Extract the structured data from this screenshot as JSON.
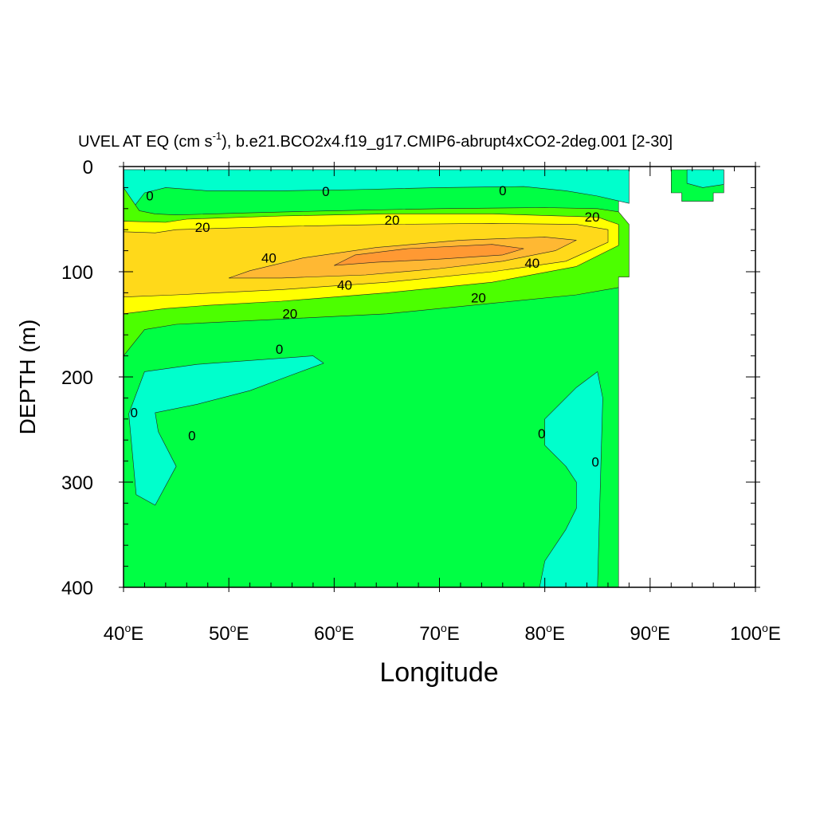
{
  "chart_data": {
    "type": "contour",
    "title": "UVEL AT EQ (cm s",
    "title_sup": "-1",
    "title_rest": "), b.e21.BCO2x4.f19_g17.CMIP6-abrupt4xCO2-2deg.001 [2-30]",
    "xlabel": "Longitude",
    "ylabel": "DEPTH (m)",
    "xlim": [
      40,
      100
    ],
    "ylim": [
      0,
      400
    ],
    "y_inverted": true,
    "x_ticks": [
      {
        "value": 40,
        "label": "40",
        "suffix": "E"
      },
      {
        "value": 50,
        "label": "50",
        "suffix": "E"
      },
      {
        "value": 60,
        "label": "60",
        "suffix": "E"
      },
      {
        "value": 70,
        "label": "70",
        "suffix": "E"
      },
      {
        "value": 80,
        "label": "80",
        "suffix": "E"
      },
      {
        "value": 90,
        "label": "90",
        "suffix": "E"
      },
      {
        "value": 100,
        "label": "100",
        "suffix": "E"
      }
    ],
    "y_ticks": [
      {
        "value": 0,
        "label": "0"
      },
      {
        "value": 100,
        "label": "100"
      },
      {
        "value": 200,
        "label": "200"
      },
      {
        "value": 300,
        "label": "300"
      },
      {
        "value": 400,
        "label": "400"
      }
    ],
    "fill_colors": {
      "neg": "#00ffcc",
      "zero_to_10": "#00ff44",
      "ten_to_20": "#4cff00",
      "twenty_to_30": "#ffff00",
      "thirty_to_40": "#ffd91a",
      "forty_to_50": "#ffb833",
      "fifty_plus": "#ff9933"
    },
    "regions": [
      {
        "level": "zero_to_10",
        "points": [
          [
            40,
            3
          ],
          [
            87,
            3
          ],
          [
            87,
            400
          ],
          [
            40,
            400
          ]
        ]
      },
      {
        "level": "neg",
        "points": [
          [
            40,
            3
          ],
          [
            88,
            3
          ],
          [
            88,
            35
          ],
          [
            85,
            28
          ],
          [
            82,
            23
          ],
          [
            78,
            19
          ],
          [
            70,
            20
          ],
          [
            62,
            22
          ],
          [
            55,
            23
          ],
          [
            48,
            23
          ],
          [
            44,
            20
          ],
          [
            42,
            25
          ],
          [
            41,
            38
          ],
          [
            40,
            45
          ]
        ]
      },
      {
        "level": "zero_to_10",
        "points": [
          [
            92,
            3
          ],
          [
            97,
            3
          ],
          [
            97,
            25
          ],
          [
            96,
            25
          ],
          [
            96,
            33
          ],
          [
            93,
            33
          ],
          [
            93,
            25
          ],
          [
            92,
            25
          ]
        ]
      },
      {
        "level": "neg",
        "points": [
          [
            93.5,
            3
          ],
          [
            97,
            3
          ],
          [
            97,
            17
          ],
          [
            95,
            20
          ],
          [
            93.5,
            16
          ]
        ]
      },
      {
        "level": "ten_to_20",
        "points": [
          [
            40,
            20
          ],
          [
            41.5,
            42
          ],
          [
            43,
            45
          ],
          [
            45,
            46
          ],
          [
            52,
            44
          ],
          [
            60,
            42
          ],
          [
            70,
            40
          ],
          [
            80,
            39
          ],
          [
            85,
            40
          ],
          [
            87,
            43
          ],
          [
            88,
            55
          ],
          [
            88,
            105
          ],
          [
            87,
            105
          ],
          [
            87,
            115
          ],
          [
            83,
            122
          ],
          [
            75,
            130
          ],
          [
            65,
            140
          ],
          [
            55,
            145
          ],
          [
            45,
            150
          ],
          [
            42,
            155
          ],
          [
            40,
            180
          ]
        ]
      },
      {
        "level": "twenty_to_30",
        "points": [
          [
            40,
            52
          ],
          [
            44,
            53
          ],
          [
            46,
            50
          ],
          [
            55,
            47
          ],
          [
            65,
            45
          ],
          [
            75,
            45
          ],
          [
            85,
            48
          ],
          [
            87,
            55
          ],
          [
            87,
            75
          ],
          [
            83,
            95
          ],
          [
            75,
            110
          ],
          [
            65,
            120
          ],
          [
            55,
            128
          ],
          [
            48,
            132
          ],
          [
            44,
            135
          ],
          [
            40,
            140
          ]
        ]
      },
      {
        "level": "thirty_to_40",
        "points": [
          [
            40,
            62
          ],
          [
            43,
            63
          ],
          [
            45,
            60
          ],
          [
            55,
            57
          ],
          [
            65,
            55
          ],
          [
            75,
            54
          ],
          [
            83,
            55
          ],
          [
            86,
            60
          ],
          [
            86,
            72
          ],
          [
            82,
            90
          ],
          [
            75,
            100
          ],
          [
            65,
            110
          ],
          [
            55,
            117
          ],
          [
            45,
            122
          ],
          [
            40,
            124
          ]
        ]
      },
      {
        "level": "forty_to_50",
        "points": [
          [
            50,
            106
          ],
          [
            52,
            99
          ],
          [
            57,
            87
          ],
          [
            64,
            77
          ],
          [
            72,
            70
          ],
          [
            80,
            67
          ],
          [
            83,
            70
          ],
          [
            81,
            80
          ],
          [
            76,
            90
          ],
          [
            70,
            97
          ],
          [
            63,
            103
          ],
          [
            55,
            106
          ]
        ]
      },
      {
        "level": "fifty_plus",
        "points": [
          [
            60,
            94
          ],
          [
            62,
            84
          ],
          [
            67,
            78
          ],
          [
            75,
            74
          ],
          [
            78,
            78
          ],
          [
            76,
            84
          ],
          [
            70,
            88
          ],
          [
            64,
            91
          ]
        ]
      },
      {
        "level": "neg",
        "points": [
          [
            40.5,
            235
          ],
          [
            42,
            195
          ],
          [
            47,
            188
          ],
          [
            58,
            180
          ],
          [
            59,
            187
          ],
          [
            56,
            198
          ],
          [
            52,
            213
          ],
          [
            47,
            226
          ],
          [
            43,
            234
          ],
          [
            43.3,
            252
          ],
          [
            45,
            285
          ],
          [
            43,
            322
          ],
          [
            41.2,
            312
          ]
        ]
      },
      {
        "level": "neg",
        "points": [
          [
            79.5,
            400
          ],
          [
            80,
            375
          ],
          [
            82,
            345
          ],
          [
            83,
            325
          ],
          [
            83,
            300
          ],
          [
            82,
            285
          ],
          [
            80,
            265
          ],
          [
            80,
            240
          ],
          [
            83,
            210
          ],
          [
            85,
            195
          ],
          [
            85.5,
            220
          ],
          [
            85,
            400
          ]
        ]
      }
    ],
    "contour_labels": [
      {
        "text": "0",
        "x": 42.5,
        "y": 28
      },
      {
        "text": "0",
        "x": 59.2,
        "y": 24
      },
      {
        "text": "0",
        "x": 76.0,
        "y": 23
      },
      {
        "text": "20",
        "x": 47.5,
        "y": 58
      },
      {
        "text": "20",
        "x": 65.5,
        "y": 51
      },
      {
        "text": "20",
        "x": 84.5,
        "y": 48
      },
      {
        "text": "40",
        "x": 53.8,
        "y": 87
      },
      {
        "text": "40",
        "x": 78.8,
        "y": 92
      },
      {
        "text": "40",
        "x": 61.0,
        "y": 113
      },
      {
        "text": "20",
        "x": 73.7,
        "y": 125
      },
      {
        "text": "20",
        "x": 55.8,
        "y": 140
      },
      {
        "text": "0",
        "x": 54.8,
        "y": 174
      },
      {
        "text": "0",
        "x": 41.0,
        "y": 234
      },
      {
        "text": "0",
        "x": 46.5,
        "y": 256
      },
      {
        "text": "0",
        "x": 79.7,
        "y": 254
      },
      {
        "text": "0",
        "x": 84.8,
        "y": 281
      }
    ]
  }
}
